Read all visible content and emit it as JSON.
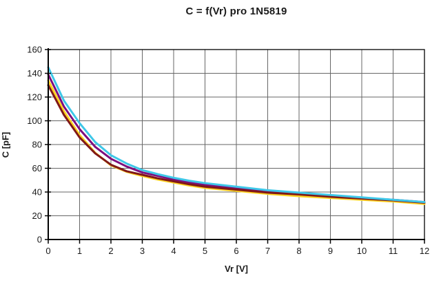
{
  "chart_data": {
    "type": "line",
    "title": "C = f(Vr) pro 1N5819",
    "xlabel": "Vr [V]",
    "ylabel": "C [pF]",
    "xlim": [
      0,
      12
    ],
    "ylim": [
      0,
      160
    ],
    "x_ticks": [
      0,
      1,
      2,
      3,
      4,
      5,
      6,
      7,
      8,
      9,
      10,
      11,
      12
    ],
    "y_ticks": [
      0,
      20,
      40,
      60,
      80,
      100,
      120,
      140,
      160
    ],
    "grid": true,
    "legend_position": "none",
    "grid_color": "#666666",
    "axis_color": "#000000",
    "background_color": "#ffffff",
    "x": [
      0,
      0.5,
      1,
      1.5,
      2,
      2.5,
      3,
      3.5,
      4,
      4.5,
      5,
      6,
      7,
      8,
      9,
      10,
      11,
      12
    ],
    "series": [
      {
        "name": "series-purple",
        "color": "#7D0E7D",
        "values": [
          139,
          112,
          93,
          78,
          68,
          61.5,
          56.5,
          53.5,
          50.5,
          48,
          46,
          43,
          40.5,
          38.5,
          36.5,
          35,
          33.5,
          31.5
        ]
      },
      {
        "name": "series-yellow",
        "color": "#FFD320",
        "values": [
          134,
          108,
          88,
          73,
          62.5,
          57,
          53.5,
          50.5,
          48,
          45.5,
          43.5,
          41,
          38.5,
          36.5,
          35,
          33.5,
          32,
          30
        ]
      },
      {
        "name": "series-dark-red",
        "color": "#801818",
        "values": [
          130,
          105,
          86,
          72.5,
          63,
          57.5,
          54.5,
          51.5,
          49,
          46.5,
          44.5,
          42,
          39.5,
          38,
          36,
          34.5,
          33,
          31
        ]
      },
      {
        "name": "series-cyan",
        "color": "#3EC7E8",
        "values": [
          145,
          117,
          98,
          82,
          71,
          64,
          58.5,
          55,
          52,
          49.5,
          47.5,
          44.5,
          41.5,
          39.5,
          37.5,
          35.5,
          33.5,
          31.5
        ]
      }
    ]
  }
}
